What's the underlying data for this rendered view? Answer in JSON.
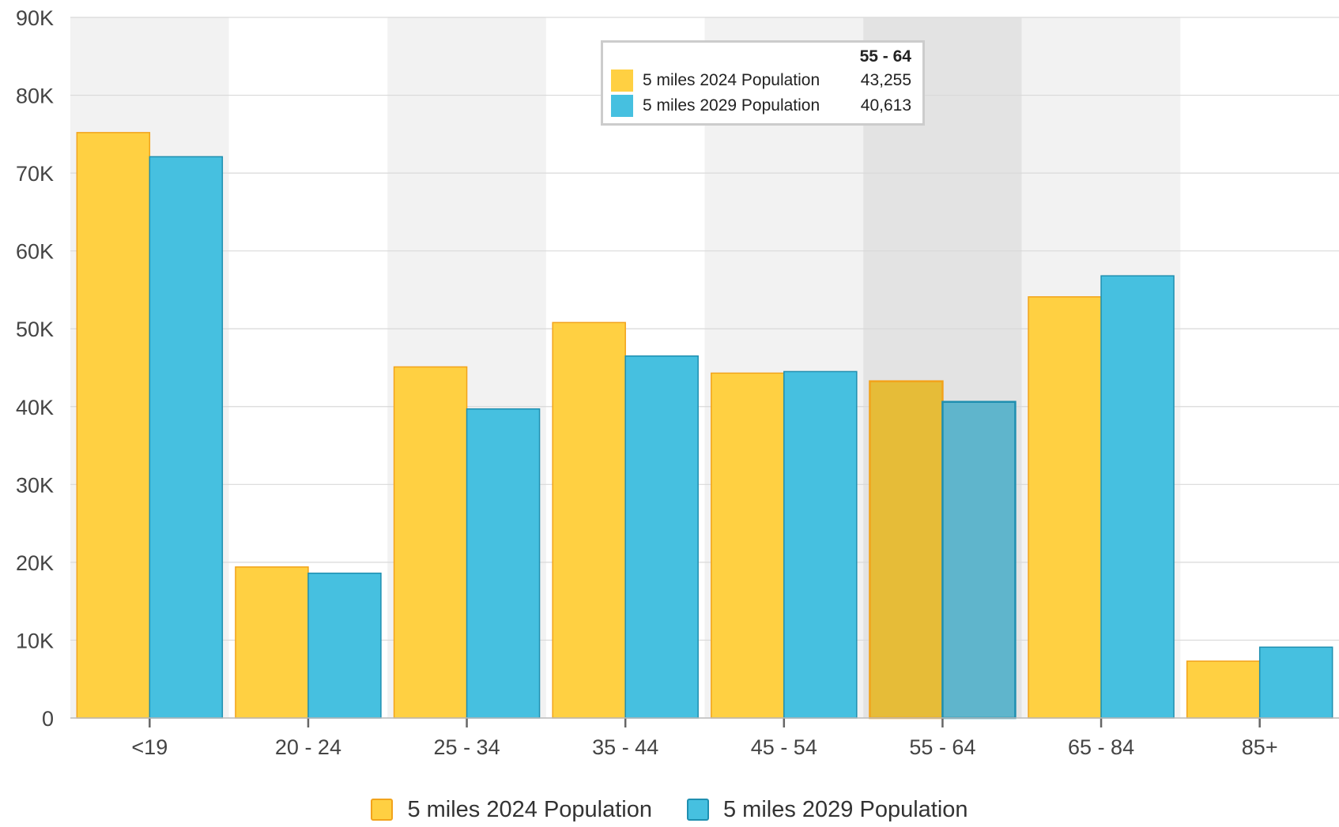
{
  "colors": {
    "series_2024": "#FFD042",
    "series_2024_border": "#F2A31B",
    "series_2029": "#46C0E0",
    "series_2029_border": "#1F8FB0",
    "highlight_2024": "#E6BC38",
    "highlight_2029": "#5FB5CC",
    "band": "#F2F2F2",
    "band_highlight": "#E3E3E3",
    "grid": "#D9D9D9",
    "axis_text": "#444444"
  },
  "tooltip": {
    "title": "55 - 64",
    "rows": [
      {
        "name": "5 miles 2024 Population",
        "value": "43,255"
      },
      {
        "name": "5 miles 2029 Population",
        "value": "40,613"
      }
    ]
  },
  "legend": {
    "items": [
      {
        "label": "5 miles 2024 Population"
      },
      {
        "label": "5 miles 2029 Population"
      }
    ]
  },
  "chart_data": {
    "type": "bar",
    "categories": [
      "<19",
      "20 - 24",
      "25 - 34",
      "35 - 44",
      "45 - 54",
      "55 - 64",
      "65 - 84",
      "85+"
    ],
    "series": [
      {
        "name": "5 miles 2024 Population",
        "values": [
          75200,
          19400,
          45100,
          50800,
          44300,
          43255,
          54100,
          7300
        ]
      },
      {
        "name": "5 miles 2029 Population",
        "values": [
          72100,
          18600,
          39700,
          46500,
          44500,
          40613,
          56800,
          9100
        ]
      }
    ],
    "ylim": [
      0,
      90000
    ],
    "yticks": [
      0,
      10000,
      20000,
      30000,
      40000,
      50000,
      60000,
      70000,
      80000,
      90000
    ],
    "ytick_labels": [
      "0",
      "10K",
      "20K",
      "30K",
      "40K",
      "50K",
      "60K",
      "70K",
      "80K",
      "90K"
    ],
    "highlighted_category": "55 - 64",
    "grid": true,
    "legend_position": "bottom-center",
    "title": "",
    "xlabel": "",
    "ylabel": ""
  }
}
